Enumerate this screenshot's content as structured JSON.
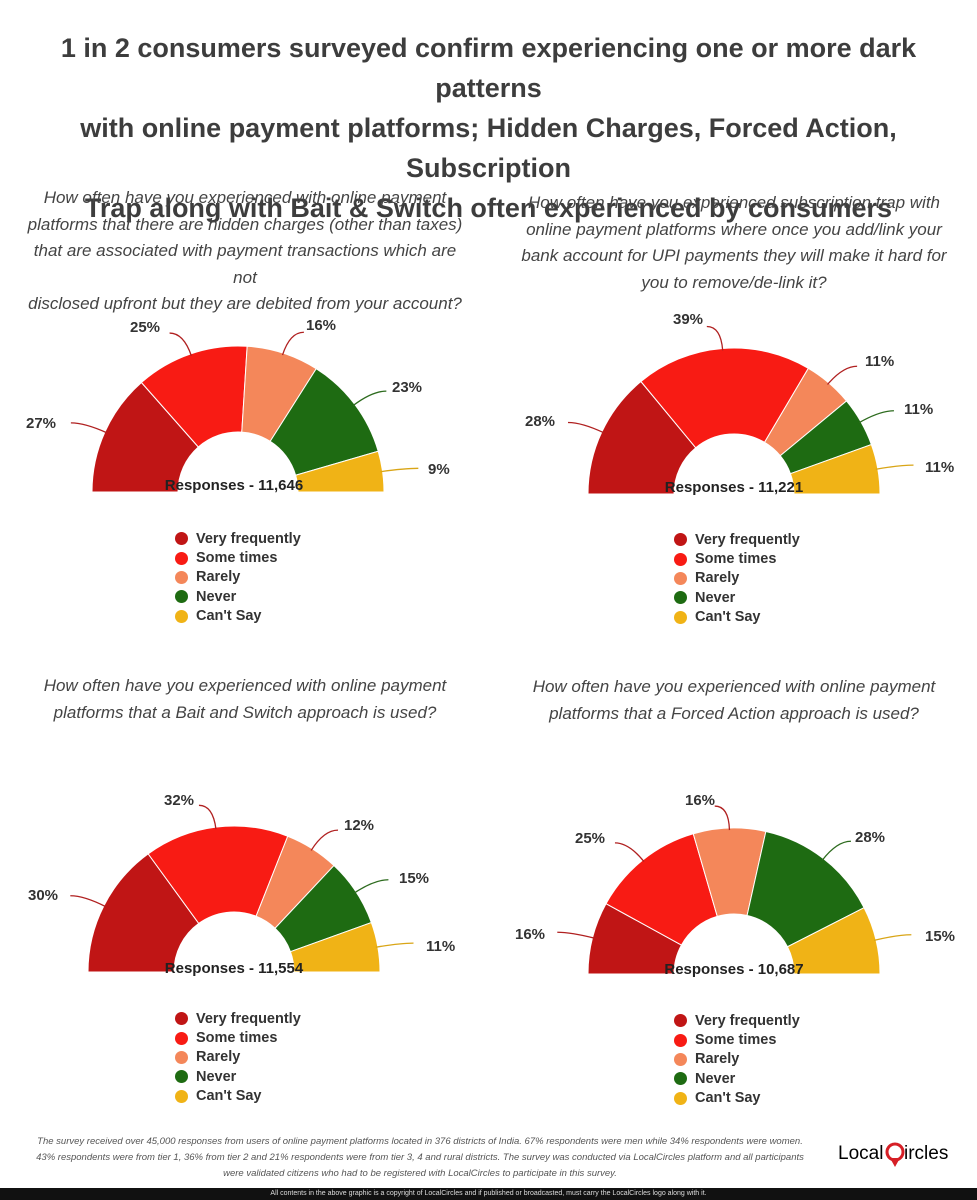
{
  "title": {
    "line1": "1 in 2 consumers surveyed confirm experiencing one or more dark patterns",
    "line2": "with online payment platforms; Hidden Charges, Forced Action, Subscription",
    "line3": "Trap along with Bait & Switch often experienced by consumers"
  },
  "legend": [
    "Very frequently",
    "Some times",
    "Rarely",
    "Never",
    "Can't Say"
  ],
  "colors": {
    "very_frequently": "#c01515",
    "some_times": "#f81b14",
    "rarely": "#f4875a",
    "never": "#1e6b12",
    "cant_say": "#f0b316",
    "leader": "#b02020",
    "leader_green": "#2d6b1e",
    "leader_yellow": "#d9a516"
  },
  "chart_data": [
    {
      "type": "pie",
      "subtype": "semi-donut",
      "question": [
        "How often have you experienced with online payment",
        "platforms that there are hidden charges (other than taxes)",
        "that are associated with payment transactions which are not",
        "disclosed upfront but they are debited from your account?"
      ],
      "categories": [
        "Very frequently",
        "Some times",
        "Rarely",
        "Never",
        "Can't Say"
      ],
      "values": [
        27,
        25,
        16,
        23,
        9
      ],
      "labels": [
        "27%",
        "25%",
        "16%",
        "23%",
        "9%"
      ],
      "responses": "Responses - 11,646"
    },
    {
      "type": "pie",
      "subtype": "semi-donut",
      "question": [
        "How often have you experienced subscription trap with",
        "online payment platforms where once you add/link your",
        "bank account for UPI payments they will make it hard for",
        "you to remove/de-link it?"
      ],
      "categories": [
        "Very frequently",
        "Some times",
        "Rarely",
        "Never",
        "Can't Say"
      ],
      "values": [
        28,
        39,
        11,
        11,
        11
      ],
      "labels": [
        "28%",
        "39%",
        "11%",
        "11%",
        "11%"
      ],
      "responses": "Responses - 11,221"
    },
    {
      "type": "pie",
      "subtype": "semi-donut",
      "question": [
        "How often have you experienced with online payment",
        "platforms that a Bait and Switch approach is used?"
      ],
      "categories": [
        "Very frequently",
        "Some times",
        "Rarely",
        "Never",
        "Can't Say"
      ],
      "values": [
        30,
        32,
        12,
        15,
        11
      ],
      "labels": [
        "30%",
        "32%",
        "12%",
        "15%",
        "11%"
      ],
      "responses": "Responses - 11,554"
    },
    {
      "type": "pie",
      "subtype": "semi-donut",
      "question": [
        "How often have you experienced with online payment",
        "platforms that a Forced Action approach is used?"
      ],
      "categories": [
        "Very frequently",
        "Some times",
        "Rarely",
        "Never",
        "Can't Say"
      ],
      "values": [
        16,
        25,
        16,
        28,
        15
      ],
      "labels": [
        "16%",
        "25%",
        "16%",
        "28%",
        "15%"
      ],
      "responses": "Responses - 10,687"
    }
  ],
  "footnote": {
    "line1": "The survey received over 45,000 responses from users of online payment platforms located in 376 districts of India. 67% respondents were men while 34% respondents were women.",
    "line2": "43% respondents were from tier 1, 36% from tier 2 and 21% respondents were from tier 3, 4 and rural districts. The survey was conducted via LocalCircles platform and all participants",
    "line3": "were validated citizens who had to be registered with LocalCircles to participate in this survey."
  },
  "logo": {
    "text_left": "Local",
    "text_right": "ircles"
  },
  "copyright": "All contents in the above graphic is a copyright of LocalCircles and if published or broadcasted, must carry the LocalCircles logo along with it."
}
